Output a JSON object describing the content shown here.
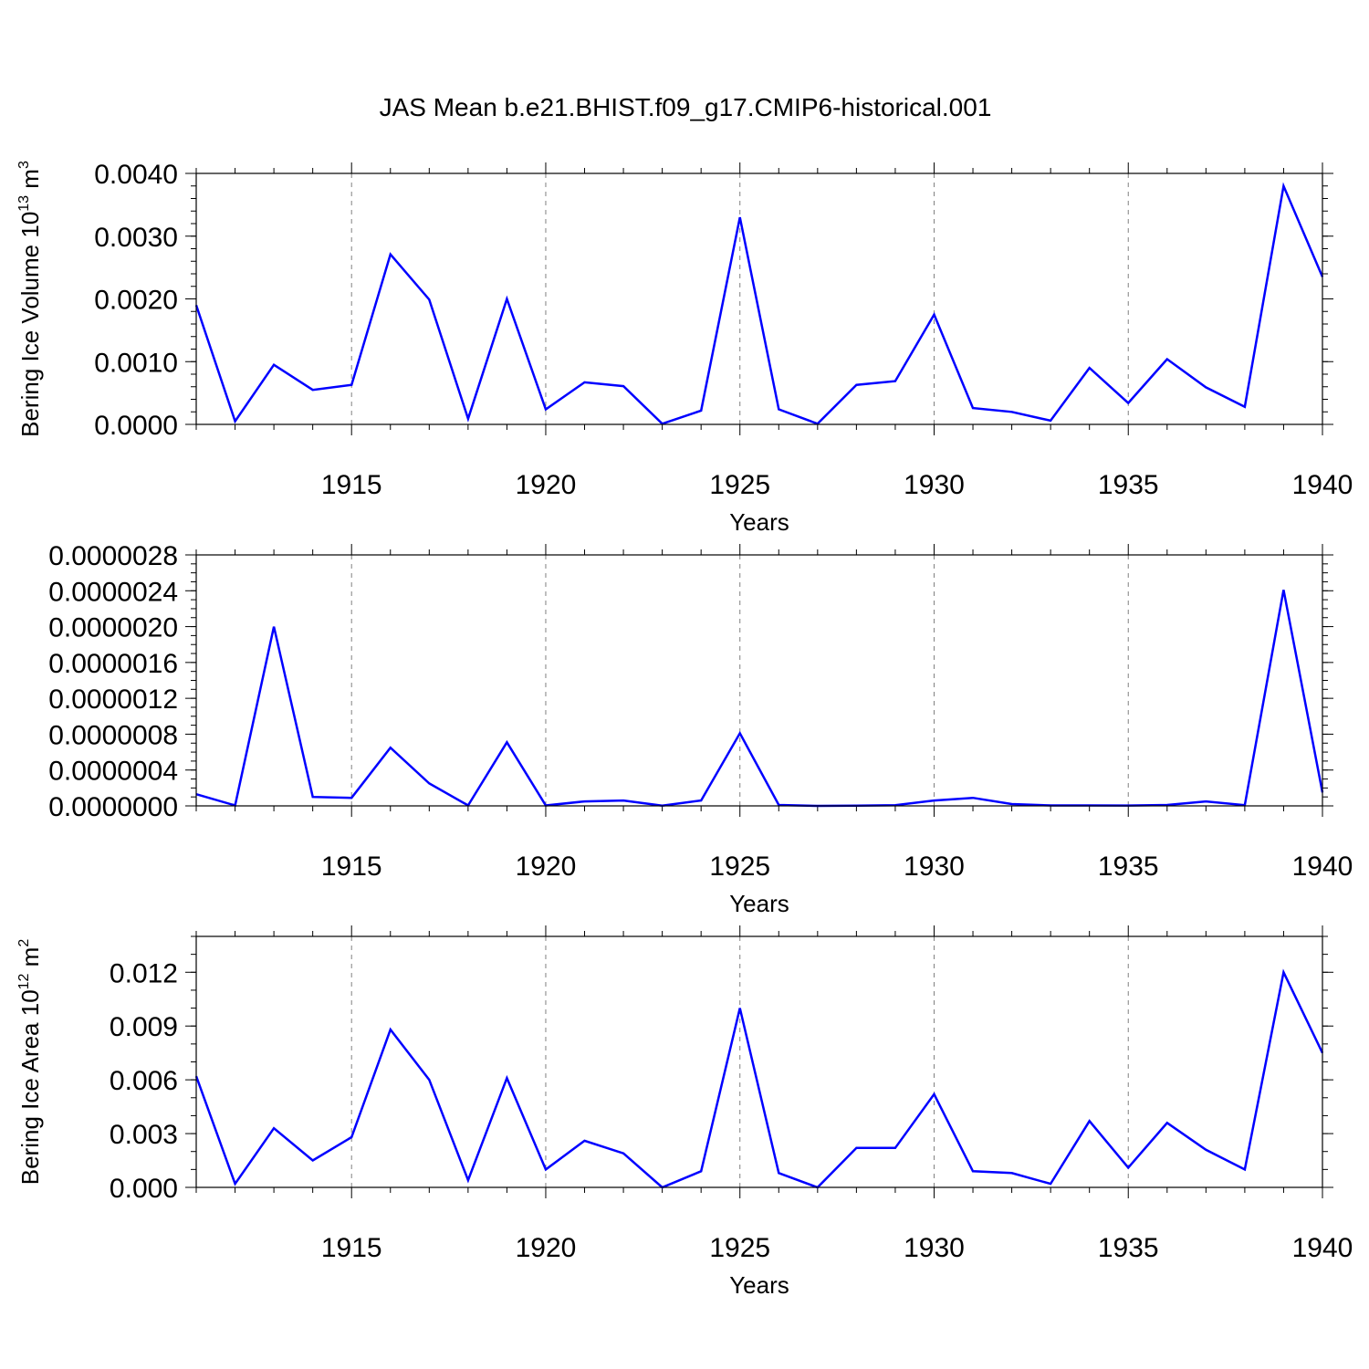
{
  "title": "JAS Mean b.e21.BHIST.f09_g17.CMIP6-historical.001",
  "colors": {
    "line": "#0000ff",
    "axis": "#000000",
    "grid": "#808080",
    "background": "#ffffff"
  },
  "chart_data": [
    {
      "type": "line",
      "title": "JAS Mean b.e21.BHIST.f09_g17.CMIP6-historical.001",
      "xlabel": "Years",
      "ylabel": "Bering Ice Volume 10",
      "ylabel_sup": "13",
      "ylabel_tail": " m",
      "ylabel_tail_sup": "3",
      "xlim": [
        1911,
        1940
      ],
      "ylim": [
        0,
        0.004
      ],
      "xticks": [
        1915,
        1920,
        1925,
        1930,
        1935,
        1940
      ],
      "xtick_labels": [
        "1915",
        "1920",
        "1925",
        "1930",
        "1935",
        "1940"
      ],
      "yticks": [
        0,
        0.001,
        0.002,
        0.003,
        0.004
      ],
      "ytick_labels": [
        "0.0000",
        "0.0010",
        "0.0020",
        "0.0030",
        "0.0040"
      ],
      "y_minor_step": 0.0002,
      "grid": "vertical-dashed",
      "x": [
        1911,
        1912,
        1913,
        1914,
        1915,
        1916,
        1917,
        1918,
        1919,
        1920,
        1921,
        1922,
        1923,
        1924,
        1925,
        1926,
        1927,
        1928,
        1929,
        1930,
        1931,
        1932,
        1933,
        1934,
        1935,
        1936,
        1937,
        1938,
        1939,
        1940
      ],
      "values": [
        0.0019,
        5e-05,
        0.00095,
        0.00055,
        0.00063,
        0.00271,
        0.00199,
        9e-05,
        0.002,
        0.00024,
        0.00067,
        0.00061,
        1e-05,
        0.00022,
        0.0033,
        0.00024,
        1e-05,
        0.00063,
        0.00069,
        0.00175,
        0.00026,
        0.0002,
        6e-05,
        0.0009,
        0.00034,
        0.00104,
        0.00059,
        0.00028,
        0.0038,
        0.00235
      ]
    },
    {
      "type": "line",
      "xlabel": "Years",
      "ylabel": "",
      "xlim": [
        1911,
        1940
      ],
      "ylim": [
        0,
        2.8e-06
      ],
      "xticks": [
        1915,
        1920,
        1925,
        1930,
        1935,
        1940
      ],
      "xtick_labels": [
        "1915",
        "1920",
        "1925",
        "1930",
        "1935",
        "1940"
      ],
      "yticks": [
        0,
        4e-07,
        8e-07,
        1.2e-06,
        1.6e-06,
        2e-06,
        2.4e-06,
        2.8e-06
      ],
      "ytick_labels": [
        "0.0000000",
        "0.0000004",
        "0.0000008",
        "0.0000012",
        "0.0000016",
        "0.0000020",
        "0.0000024",
        "0.0000028"
      ],
      "y_minor_step": 1e-07,
      "grid": "vertical-dashed",
      "x": [
        1911,
        1912,
        1913,
        1914,
        1915,
        1916,
        1917,
        1918,
        1919,
        1920,
        1921,
        1922,
        1923,
        1924,
        1925,
        1926,
        1927,
        1928,
        1929,
        1930,
        1931,
        1932,
        1933,
        1934,
        1935,
        1936,
        1937,
        1938,
        1939,
        1940
      ],
      "values": [
        1.3e-07,
        5e-09,
        2e-06,
        1e-07,
        9e-08,
        6.5e-07,
        2.5e-07,
        5e-09,
        7.1e-07,
        5e-09,
        5e-08,
        6e-08,
        3e-09,
        6e-08,
        8.1e-07,
        1e-08,
        0.0,
        2e-09,
        8e-09,
        6e-08,
        9e-08,
        2e-08,
        5e-09,
        5e-09,
        4e-09,
        1e-08,
        5e-08,
        8e-09,
        2.41e-06,
        1.5e-07
      ]
    },
    {
      "type": "line",
      "xlabel": "Years",
      "ylabel": "Bering Ice Area 10",
      "ylabel_sup": "12",
      "ylabel_tail": " m",
      "ylabel_tail_sup": "2",
      "xlim": [
        1911,
        1940
      ],
      "ylim": [
        0,
        0.014
      ],
      "xticks": [
        1915,
        1920,
        1925,
        1930,
        1935,
        1940
      ],
      "xtick_labels": [
        "1915",
        "1920",
        "1925",
        "1930",
        "1935",
        "1940"
      ],
      "yticks": [
        0,
        0.003,
        0.006,
        0.009,
        0.012
      ],
      "ytick_labels": [
        "0.000",
        "0.003",
        "0.006",
        "0.009",
        "0.012"
      ],
      "y_minor_step": 0.001,
      "grid": "vertical-dashed",
      "x": [
        1911,
        1912,
        1913,
        1914,
        1915,
        1916,
        1917,
        1918,
        1919,
        1920,
        1921,
        1922,
        1923,
        1924,
        1925,
        1926,
        1927,
        1928,
        1929,
        1930,
        1931,
        1932,
        1933,
        1934,
        1935,
        1936,
        1937,
        1938,
        1939,
        1940
      ],
      "values": [
        0.0062,
        0.0002,
        0.0033,
        0.0015,
        0.0028,
        0.0088,
        0.006,
        0.0004,
        0.0061,
        0.001,
        0.0026,
        0.0019,
        0.0,
        0.0009,
        0.01,
        0.0008,
        0.0,
        0.0022,
        0.0022,
        0.0052,
        0.0009,
        0.0008,
        0.0002,
        0.0037,
        0.0011,
        0.0036,
        0.0021,
        0.001,
        0.012,
        0.0075
      ]
    }
  ]
}
